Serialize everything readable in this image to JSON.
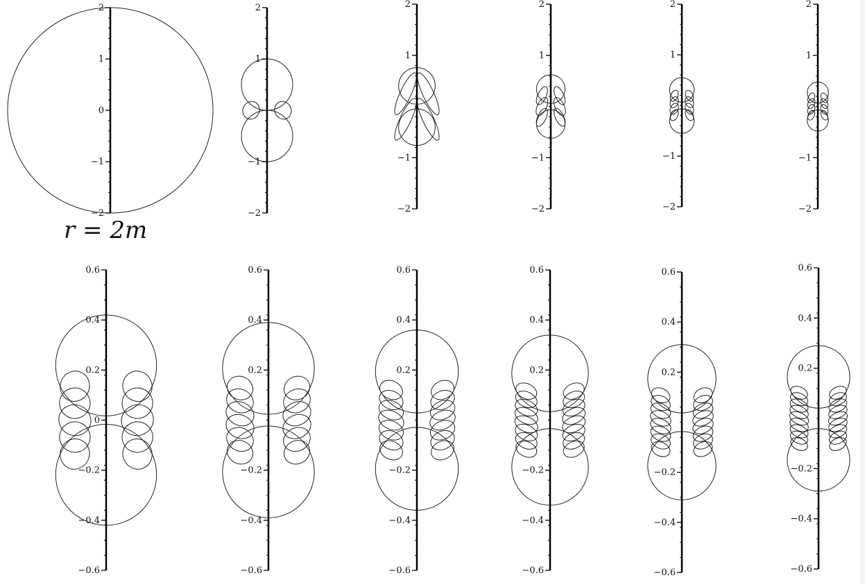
{
  "caption": "r = 2m",
  "panels": [
    {
      "row": 0,
      "ticks": [
        {
          "v": 2,
          "label": "2"
        },
        {
          "v": 1,
          "label": "1"
        },
        {
          "v": 0,
          "label": "0"
        },
        {
          "v": -1,
          "label": "−1"
        },
        {
          "v": -2,
          "label": "−2"
        }
      ],
      "range": [
        -2,
        2
      ],
      "shape": {
        "R": 2.0,
        "type": "circle"
      }
    },
    {
      "row": 0,
      "ticks": [
        {
          "v": 2,
          "label": "2"
        },
        {
          "v": 1,
          "label": "1"
        },
        {
          "v": -1,
          "label": "−1"
        },
        {
          "v": -2,
          "label": "−2"
        }
      ],
      "range": [
        -2,
        2
      ],
      "shape": {
        "R": 1.0,
        "lobe": 0.5,
        "loops": 1,
        "type": "peanut"
      }
    },
    {
      "row": 0,
      "ticks": [
        {
          "v": 2,
          "label": "2"
        },
        {
          "v": 1,
          "label": "1"
        },
        {
          "v": -1,
          "label": "−1"
        },
        {
          "v": -2,
          "label": "−2"
        }
      ],
      "range": [
        -2,
        2
      ],
      "shape": {
        "R": 0.76,
        "lobe": 0.47,
        "loops": 2,
        "type": "peanut"
      }
    },
    {
      "row": 0,
      "ticks": [
        {
          "v": 2,
          "label": "2"
        },
        {
          "v": 1,
          "label": "1"
        },
        {
          "v": -1,
          "label": "−1"
        },
        {
          "v": -2,
          "label": "−2"
        }
      ],
      "range": [
        -2,
        2
      ],
      "shape": {
        "R": 0.62,
        "lobe": 0.45,
        "loops": 3,
        "type": "peanut"
      }
    },
    {
      "row": 0,
      "ticks": [
        {
          "v": 2,
          "label": "2"
        },
        {
          "v": 1,
          "label": "1"
        },
        {
          "v": -1,
          "label": "−1"
        },
        {
          "v": -2,
          "label": "−2"
        }
      ],
      "range": [
        -2,
        2
      ],
      "shape": {
        "R": 0.55,
        "lobe": 0.44,
        "loops": 4,
        "type": "peanut"
      }
    },
    {
      "row": 0,
      "ticks": [
        {
          "v": 2,
          "label": "2"
        },
        {
          "v": 1,
          "label": "1"
        },
        {
          "v": -1,
          "label": "−1"
        },
        {
          "v": -2,
          "label": "−2"
        }
      ],
      "range": [
        -2,
        2
      ],
      "shape": {
        "R": 0.48,
        "lobe": 0.43,
        "loops": 4,
        "type": "peanut"
      }
    },
    {
      "row": 1,
      "ticks": [
        {
          "v": 0.6,
          "label": "0.6"
        },
        {
          "v": 0.4,
          "label": "0.4"
        },
        {
          "v": 0.2,
          "label": "0.2"
        },
        {
          "v": 0,
          "label": "0"
        },
        {
          "v": -0.2,
          "label": "−0.2"
        },
        {
          "v": -0.4,
          "label": "−0.4"
        },
        {
          "v": -0.6,
          "label": "−0.6"
        }
      ],
      "range": [
        -0.6,
        0.6
      ],
      "shape": {
        "R": 0.42,
        "lobe": 0.48,
        "loops": 5,
        "type": "peanut"
      }
    },
    {
      "row": 1,
      "ticks": [
        {
          "v": 0.6,
          "label": "0.6"
        },
        {
          "v": 0.4,
          "label": "0.4"
        },
        {
          "v": 0.2,
          "label": "0.2"
        },
        {
          "v": -0.2,
          "label": "−0.2"
        },
        {
          "v": -0.4,
          "label": "−0.4"
        },
        {
          "v": -0.6,
          "label": "−0.6"
        }
      ],
      "range": [
        -0.6,
        0.6
      ],
      "shape": {
        "R": 0.39,
        "lobe": 0.47,
        "loops": 6,
        "type": "peanut"
      }
    },
    {
      "row": 1,
      "ticks": [
        {
          "v": 0.6,
          "label": "0.6"
        },
        {
          "v": 0.4,
          "label": "0.4"
        },
        {
          "v": 0.2,
          "label": "0.2"
        },
        {
          "v": -0.2,
          "label": "−0.2"
        },
        {
          "v": -0.4,
          "label": "−0.4"
        },
        {
          "v": -0.6,
          "label": "−0.6"
        }
      ],
      "range": [
        -0.6,
        0.6
      ],
      "shape": {
        "R": 0.36,
        "lobe": 0.46,
        "loops": 7,
        "type": "peanut"
      }
    },
    {
      "row": 1,
      "ticks": [
        {
          "v": 0.6,
          "label": "0.6"
        },
        {
          "v": 0.4,
          "label": "0.4"
        },
        {
          "v": 0.2,
          "label": "0.2"
        },
        {
          "v": -0.2,
          "label": "−0.2"
        },
        {
          "v": -0.4,
          "label": "−0.4"
        },
        {
          "v": -0.6,
          "label": "−0.6"
        }
      ],
      "range": [
        -0.6,
        0.6
      ],
      "shape": {
        "R": 0.34,
        "lobe": 0.45,
        "loops": 8,
        "type": "peanut"
      }
    },
    {
      "row": 1,
      "ticks": [
        {
          "v": 0.6,
          "label": "0.6"
        },
        {
          "v": 0.4,
          "label": "0.4"
        },
        {
          "v": 0.2,
          "label": "0.2"
        },
        {
          "v": -0.2,
          "label": "−0.2"
        },
        {
          "v": -0.4,
          "label": "−0.4"
        },
        {
          "v": -0.6,
          "label": "−0.6"
        }
      ],
      "range": [
        -0.6,
        0.6
      ],
      "shape": {
        "R": 0.31,
        "lobe": 0.44,
        "loops": 8,
        "type": "peanut"
      }
    },
    {
      "row": 1,
      "ticks": [
        {
          "v": 0.6,
          "label": "0.6"
        },
        {
          "v": 0.4,
          "label": "0.4"
        },
        {
          "v": 0.2,
          "label": "0.2"
        },
        {
          "v": -0.2,
          "label": "−0.2"
        },
        {
          "v": -0.4,
          "label": "−0.4"
        },
        {
          "v": -0.6,
          "label": "−0.6"
        }
      ],
      "range": [
        -0.6,
        0.6
      ],
      "shape": {
        "R": 0.29,
        "lobe": 0.43,
        "loops": 9,
        "type": "peanut"
      }
    }
  ]
}
